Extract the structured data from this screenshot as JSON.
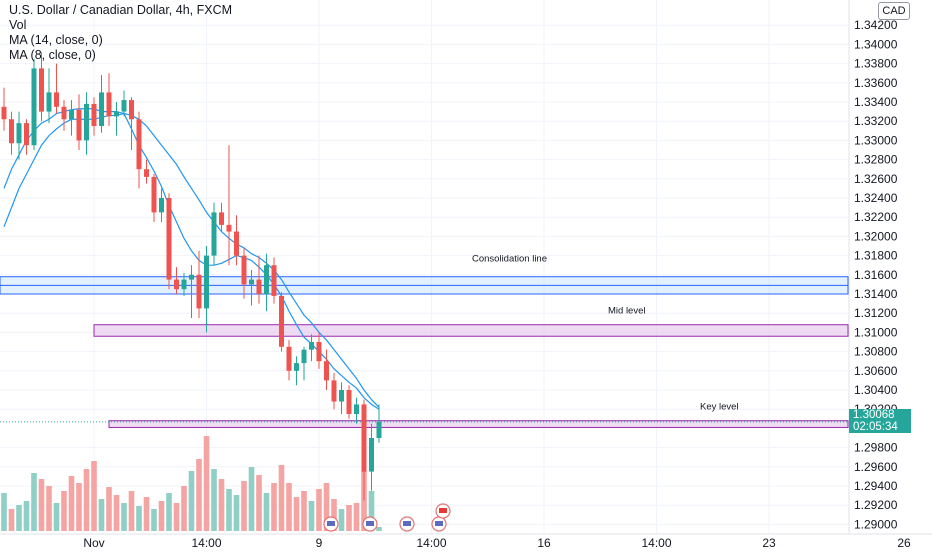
{
  "legend": {
    "title": "U.S. Dollar / Canadian Dollar, 4h, FXCM",
    "vol": "Vol",
    "ma14": "MA (14, close, 0)",
    "ma8": "MA (8, close, 0)"
  },
  "currency": "CAD",
  "last_price": "1.30068",
  "countdown": "02:05:34",
  "colors": {
    "up": "#26a69a",
    "down": "#ef5350",
    "vol_up": "#8fcfc5",
    "vol_down": "#f4a5a3",
    "ma": "#2196f3",
    "consolidation": "#2962ff",
    "mid": "#9c27b0",
    "key": "#9c27b0"
  },
  "chart_data": {
    "type": "candlestick",
    "symbol": "USDCAD",
    "timeframe": "4h",
    "y_range": [
      1.289,
      1.344
    ],
    "y_ticks": [
      1.29,
      1.292,
      1.294,
      1.296,
      1.298,
      1.302,
      1.304,
      1.306,
      1.308,
      1.31,
      1.312,
      1.314,
      1.316,
      1.318,
      1.32,
      1.322,
      1.324,
      1.326,
      1.328,
      1.33,
      1.332,
      1.334,
      1.336,
      1.338,
      1.34,
      1.342
    ],
    "y_tick_labels": [
      "1.29000",
      "1.29200",
      "1.29400",
      "1.29600",
      "1.29800",
      "1.30200",
      "1.30400",
      "1.30600",
      "1.30800",
      "1.31000",
      "1.31200",
      "1.31400",
      "1.31600",
      "1.31800",
      "1.32000",
      "1.32200",
      "1.32400",
      "1.32600",
      "1.32800",
      "1.33000",
      "1.33200",
      "1.33400",
      "1.33600",
      "1.33800",
      "1.34000",
      "1.34200"
    ],
    "x_labels": [
      {
        "label": "Nov",
        "bar": 12
      },
      {
        "label": "14:00",
        "bar": 27
      },
      {
        "label": "9",
        "bar": 42
      },
      {
        "label": "14:00",
        "bar": 57
      },
      {
        "label": "16",
        "bar": 72
      },
      {
        "label": "14:00",
        "bar": 87
      },
      {
        "label": "23",
        "bar": 102
      },
      {
        "label": "26",
        "bar": 120
      }
    ],
    "candles": [
      [
        1.3335,
        1.3355,
        1.331,
        1.3322
      ],
      [
        1.3322,
        1.333,
        1.3285,
        1.3297
      ],
      [
        1.3297,
        1.333,
        1.328,
        1.3318
      ],
      [
        1.3318,
        1.3322,
        1.3285,
        1.3295
      ],
      [
        1.3295,
        1.3385,
        1.329,
        1.3375
      ],
      [
        1.3375,
        1.3392,
        1.332,
        1.333
      ],
      [
        1.333,
        1.3375,
        1.3318,
        1.335
      ],
      [
        1.335,
        1.338,
        1.3328,
        1.3335
      ],
      [
        1.3335,
        1.3342,
        1.331,
        1.3322
      ],
      [
        1.3322,
        1.3342,
        1.3305,
        1.3332
      ],
      [
        1.3332,
        1.3348,
        1.329,
        1.33
      ],
      [
        1.33,
        1.335,
        1.3285,
        1.3338
      ],
      [
        1.3338,
        1.3345,
        1.3305,
        1.3315
      ],
      [
        1.3315,
        1.3368,
        1.3308,
        1.335
      ],
      [
        1.335,
        1.337,
        1.3315,
        1.3325
      ],
      [
        1.3325,
        1.334,
        1.3305,
        1.333
      ],
      [
        1.333,
        1.3352,
        1.3325,
        1.3342
      ],
      [
        1.3342,
        1.3345,
        1.329,
        1.3322
      ],
      [
        1.3322,
        1.333,
        1.325,
        1.327
      ],
      [
        1.327,
        1.328,
        1.3255,
        1.3262
      ],
      [
        1.3262,
        1.3265,
        1.3215,
        1.3225
      ],
      [
        1.3225,
        1.325,
        1.3215,
        1.324
      ],
      [
        1.324,
        1.3245,
        1.3145,
        1.3155
      ],
      [
        1.3155,
        1.3168,
        1.314,
        1.3145
      ],
      [
        1.3145,
        1.3162,
        1.3138,
        1.3155
      ],
      [
        1.3155,
        1.317,
        1.3115,
        1.316
      ],
      [
        1.316,
        1.3185,
        1.3115,
        1.3125
      ],
      [
        1.3125,
        1.319,
        1.31,
        1.318
      ],
      [
        1.318,
        1.3235,
        1.317,
        1.3225
      ],
      [
        1.3225,
        1.3235,
        1.3205,
        1.3212
      ],
      [
        1.3212,
        1.3295,
        1.317,
        1.3205
      ],
      [
        1.3205,
        1.3222,
        1.317,
        1.318
      ],
      [
        1.318,
        1.3188,
        1.3135,
        1.315
      ],
      [
        1.315,
        1.3165,
        1.3128,
        1.3155
      ],
      [
        1.3155,
        1.318,
        1.313,
        1.314
      ],
      [
        1.314,
        1.3182,
        1.3122,
        1.317
      ],
      [
        1.317,
        1.3178,
        1.313,
        1.3138
      ],
      [
        1.3138,
        1.3142,
        1.308,
        1.3085
      ],
      [
        1.3085,
        1.3092,
        1.305,
        1.306
      ],
      [
        1.306,
        1.3075,
        1.3045,
        1.3068
      ],
      [
        1.3068,
        1.3085,
        1.305,
        1.3082
      ],
      [
        1.3082,
        1.3098,
        1.307,
        1.309
      ],
      [
        1.309,
        1.31,
        1.3062,
        1.307
      ],
      [
        1.307,
        1.3082,
        1.304,
        1.305
      ],
      [
        1.305,
        1.3058,
        1.302,
        1.3028
      ],
      [
        1.3028,
        1.3048,
        1.3015,
        1.304
      ],
      [
        1.304,
        1.3045,
        1.301,
        1.3015
      ],
      [
        1.3015,
        1.3032,
        1.3005,
        1.3025
      ],
      [
        1.3025,
        1.303,
        1.2925,
        1.2955
      ],
      [
        1.2955,
        1.3005,
        1.2935,
        1.299
      ],
      [
        1.299,
        1.3025,
        1.2985,
        1.3007
      ]
    ],
    "volume": [
      [
        38,
        1
      ],
      [
        22,
        0
      ],
      [
        26,
        1
      ],
      [
        30,
        1
      ],
      [
        58,
        1
      ],
      [
        52,
        0
      ],
      [
        45,
        0
      ],
      [
        28,
        1
      ],
      [
        40,
        0
      ],
      [
        55,
        0
      ],
      [
        48,
        0
      ],
      [
        62,
        0
      ],
      [
        70,
        0
      ],
      [
        32,
        1
      ],
      [
        44,
        0
      ],
      [
        36,
        0
      ],
      [
        28,
        1
      ],
      [
        40,
        0
      ],
      [
        25,
        1
      ],
      [
        34,
        0
      ],
      [
        22,
        1
      ],
      [
        30,
        0
      ],
      [
        38,
        1
      ],
      [
        28,
        0
      ],
      [
        45,
        0
      ],
      [
        60,
        1
      ],
      [
        72,
        0
      ],
      [
        95,
        0
      ],
      [
        62,
        1
      ],
      [
        52,
        0
      ],
      [
        42,
        1
      ],
      [
        36,
        1
      ],
      [
        50,
        0
      ],
      [
        64,
        1
      ],
      [
        56,
        0
      ],
      [
        38,
        1
      ],
      [
        48,
        0
      ],
      [
        66,
        0
      ],
      [
        48,
        0
      ],
      [
        34,
        0
      ],
      [
        40,
        0
      ],
      [
        30,
        1
      ],
      [
        42,
        0
      ],
      [
        48,
        0
      ],
      [
        32,
        0
      ],
      [
        22,
        1
      ],
      [
        26,
        0
      ],
      [
        28,
        0
      ],
      [
        60,
        0
      ],
      [
        40,
        1
      ],
      [
        4,
        1
      ]
    ],
    "moving_averages": [
      {
        "name": "MA (14, close, 0)",
        "values": [
          1.321,
          1.323,
          1.325,
          1.3265,
          1.328,
          1.3295,
          1.3305,
          1.3312,
          1.3318,
          1.3322,
          1.3322,
          1.3322,
          1.3322,
          1.3324,
          1.3326,
          1.3326,
          1.3328,
          1.3326,
          1.3322,
          1.3315,
          1.3305,
          1.3295,
          1.3285,
          1.3275,
          1.3262,
          1.325,
          1.3238,
          1.3225,
          1.3215,
          1.3205,
          1.3198,
          1.3192,
          1.3188,
          1.3182,
          1.3178,
          1.3172,
          1.3165,
          1.3155,
          1.3142,
          1.313,
          1.3118,
          1.311,
          1.31,
          1.3092,
          1.3082,
          1.3072,
          1.3062,
          1.3052,
          1.304,
          1.303,
          1.3022
        ]
      },
      {
        "name": "MA (8, close, 0)",
        "values": [
          1.325,
          1.327,
          1.3285,
          1.33,
          1.331,
          1.3318,
          1.3322,
          1.3328,
          1.333,
          1.3332,
          1.3333,
          1.3333,
          1.3333,
          1.333,
          1.333,
          1.333,
          1.3328,
          1.3312,
          1.3295,
          1.3282,
          1.3268,
          1.3252,
          1.3232,
          1.3215,
          1.3198,
          1.3185,
          1.3175,
          1.317,
          1.317,
          1.3172,
          1.3176,
          1.318,
          1.3178,
          1.3175,
          1.3168,
          1.316,
          1.315,
          1.3138,
          1.3122,
          1.3108,
          1.3095,
          1.3088,
          1.308,
          1.3072,
          1.3062,
          1.3055,
          1.3048,
          1.3042,
          1.3032,
          1.3025,
          1.302
        ]
      }
    ],
    "zones": [
      {
        "label": "Consolidation line",
        "low": 1.314,
        "high": 1.3158,
        "start_bar": -1
      },
      {
        "label": "Mid level",
        "low": 1.3096,
        "high": 1.3108,
        "start_bar": 12
      },
      {
        "label": "Key level",
        "low": 1.3001,
        "high": 1.3008,
        "start_bar": 14
      }
    ]
  }
}
